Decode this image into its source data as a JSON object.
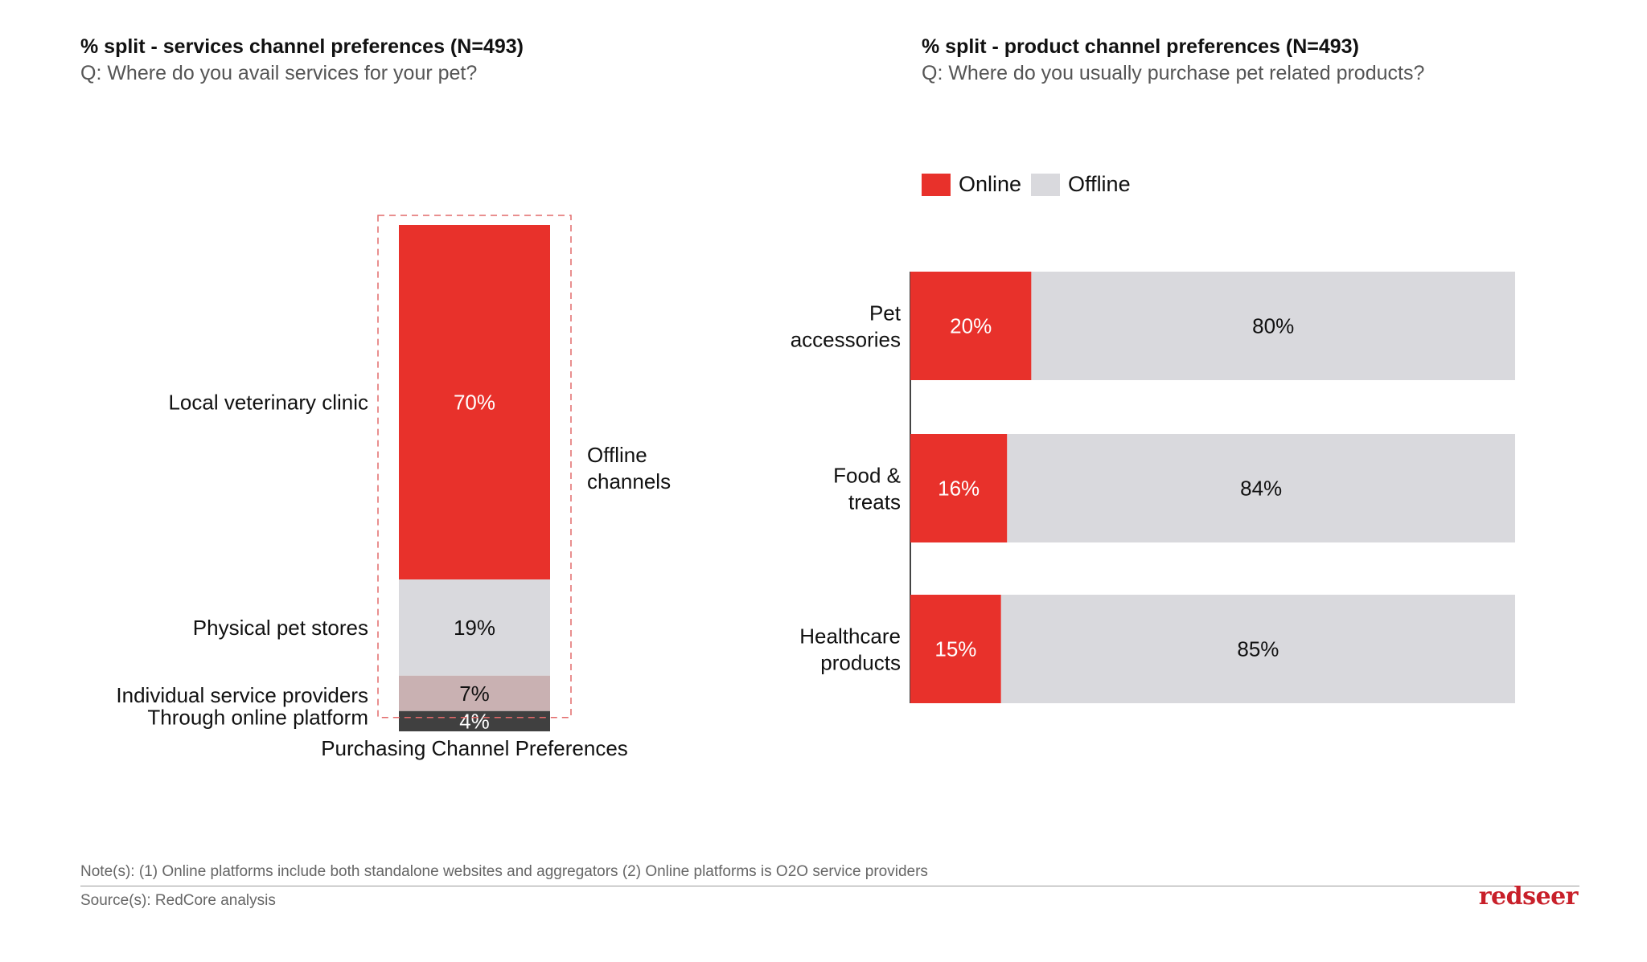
{
  "left_panel": {
    "title": "% split - services channel preferences (N=493)",
    "question": "Q: Where do you avail services for your pet?"
  },
  "right_panel": {
    "title": "% split - product channel preferences (N=493)",
    "question": "Q: Where do you usually purchase pet related products?"
  },
  "colors": {
    "online_red": "#e8312b",
    "offline_grey": "#d9d9dd",
    "pinkish": "#c9b1b2",
    "dark": "#404040"
  },
  "chart_data": [
    {
      "type": "bar",
      "orientation": "vertical-stacked",
      "title": "% split - services channel preferences (N=493)",
      "xlabel": "Purchasing Channel Preferences",
      "ylabel": "",
      "ylim": [
        0,
        100
      ],
      "categories": [
        "Local veterinary clinic",
        "Physical pet stores",
        "Individual service providers",
        "Through online platform"
      ],
      "values": [
        70,
        19,
        7,
        4
      ],
      "data_labels": [
        "70%",
        "19%",
        "7%",
        "4%"
      ],
      "annotation": "Offline\nchannels",
      "annotation_lines": [
        "Offline",
        "channels"
      ],
      "grid": false
    },
    {
      "type": "bar",
      "orientation": "horizontal-stacked-100",
      "title": "% split - product channel preferences (N=493)",
      "xlabel": "",
      "ylabel": "",
      "xlim": [
        0,
        100
      ],
      "legend": [
        "Online",
        "Offline"
      ],
      "legend_position": "top-left",
      "categories": [
        [
          "Pet",
          "accessories"
        ],
        [
          "Food &",
          "treats"
        ],
        [
          "Healthcare",
          "products"
        ]
      ],
      "series": [
        {
          "name": "Online",
          "values": [
            20,
            16,
            15
          ],
          "labels": [
            "20%",
            "16%",
            "15%"
          ]
        },
        {
          "name": "Offline",
          "values": [
            80,
            84,
            85
          ],
          "labels": [
            "80%",
            "84%",
            "85%"
          ]
        }
      ],
      "grid": false
    }
  ],
  "footer": {
    "note": "Note(s): (1) Online platforms include both standalone websites and aggregators (2) Online platforms is O2O service providers",
    "source": "Source(s): RedCore analysis",
    "logo": "redseer"
  }
}
